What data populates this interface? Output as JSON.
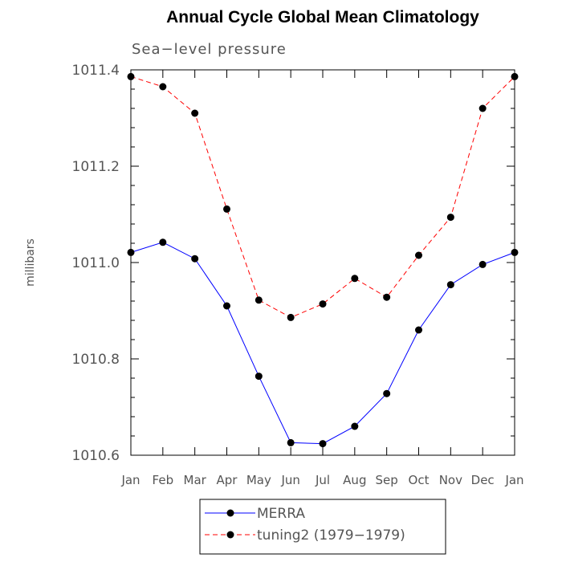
{
  "chart_data": {
    "type": "line",
    "title": "Annual Cycle Global Mean Climatology",
    "subtitle": "Sea−level pressure",
    "xlabel": "",
    "ylabel": "millibars",
    "ylim": [
      1010.6,
      1011.4
    ],
    "yticks": [
      1010.6,
      1010.8,
      1011.0,
      1011.2,
      1011.4
    ],
    "ytick_labels": [
      "1010.6",
      "1010.8",
      "1011.0",
      "1011.2",
      "1011.4"
    ],
    "categories": [
      "Jan",
      "Feb",
      "Mar",
      "Apr",
      "May",
      "Jun",
      "Jul",
      "Aug",
      "Sep",
      "Oct",
      "Nov",
      "Dec",
      "Jan"
    ],
    "series": [
      {
        "name": "MERRA",
        "color": "#0000ff",
        "dash": "solid",
        "values": [
          1011.021,
          1011.042,
          1011.008,
          1010.91,
          1010.764,
          1010.626,
          1010.624,
          1010.66,
          1010.728,
          1010.86,
          1010.954,
          1010.996,
          1011.021
        ]
      },
      {
        "name": "tuning2 (1979−1979)",
        "color": "#ff0000",
        "dash": "dashed",
        "values": [
          1011.386,
          1011.365,
          1011.31,
          1011.111,
          1010.922,
          1010.886,
          1010.914,
          1010.967,
          1010.928,
          1011.015,
          1011.094,
          1011.32,
          1011.386
        ]
      }
    ],
    "legend_position": "bottom"
  }
}
